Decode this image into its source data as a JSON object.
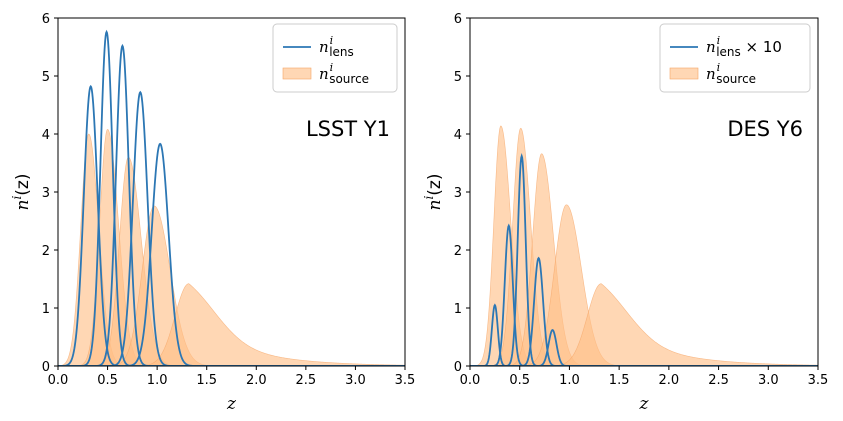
{
  "colors": {
    "lens": "#2c77b4",
    "source": "#ffbf86",
    "source_edge": "#f5a567"
  },
  "chart_data": [
    {
      "type": "line",
      "annotation": "LSST Y1",
      "xlabel": "z",
      "ylabel": "n^i(z)",
      "xlim": [
        0.0,
        3.5
      ],
      "ylim": [
        0,
        6
      ],
      "xticks": [
        "0.0",
        "0.5",
        "1.0",
        "1.5",
        "2.0",
        "2.5",
        "3.0",
        "3.5"
      ],
      "yticks": [
        "0",
        "1",
        "2",
        "3",
        "4",
        "5",
        "6"
      ],
      "legend": {
        "placement": "top-right",
        "lens_label": "n",
        "lens_sup": "i",
        "lens_sub": "lens",
        "lens_suffix": "",
        "source_label": "n",
        "source_sup": "i",
        "source_sub": "source"
      },
      "lens_series": [
        {
          "mean": 0.33,
          "sigma": 0.07,
          "peak": 4.82
        },
        {
          "mean": 0.49,
          "sigma": 0.062,
          "peak": 5.76
        },
        {
          "mean": 0.65,
          "sigma": 0.065,
          "peak": 5.52
        },
        {
          "mean": 0.83,
          "sigma": 0.074,
          "peak": 4.72
        },
        {
          "mean": 1.03,
          "sigma": 0.085,
          "peak": 3.83
        }
      ],
      "source_series": [
        {
          "mean": 0.31,
          "sigma_left": 0.08,
          "sigma_right": 0.1,
          "tail": 0.0,
          "peak": 4.0
        },
        {
          "mean": 0.5,
          "sigma_left": 0.08,
          "sigma_right": 0.11,
          "tail": 0.0,
          "peak": 4.08
        },
        {
          "mean": 0.71,
          "sigma_left": 0.09,
          "sigma_right": 0.13,
          "tail": 0.0,
          "peak": 3.6
        },
        {
          "mean": 0.97,
          "sigma_left": 0.12,
          "sigma_right": 0.16,
          "tail": 0.0,
          "peak": 2.76
        },
        {
          "mean": 1.32,
          "sigma_left": 0.14,
          "sigma_right": 0.3,
          "tail": 0.55,
          "peak": 1.42
        }
      ]
    },
    {
      "type": "line",
      "annotation": "DES Y6",
      "xlabel": "z",
      "ylabel": "n^i(z)",
      "xlim": [
        0.0,
        3.5
      ],
      "ylim": [
        0,
        6
      ],
      "xticks": [
        "0.0",
        "0.5",
        "1.0",
        "1.5",
        "2.0",
        "2.5",
        "3.0",
        "3.5"
      ],
      "yticks": [
        "0",
        "1",
        "2",
        "3",
        "4",
        "5",
        "6"
      ],
      "legend": {
        "placement": "top-right",
        "lens_label": "n",
        "lens_sup": "i",
        "lens_sub": "lens",
        "lens_suffix": " × 10",
        "source_label": "n",
        "source_sup": "i",
        "source_sub": "source"
      },
      "lens_series": [
        {
          "mean": 0.25,
          "sigma": 0.03,
          "peak": 1.05
        },
        {
          "mean": 0.39,
          "sigma": 0.04,
          "peak": 2.42
        },
        {
          "mean": 0.52,
          "sigma": 0.04,
          "peak": 3.62
        },
        {
          "mean": 0.69,
          "sigma": 0.045,
          "peak": 1.86
        },
        {
          "mean": 0.83,
          "sigma": 0.04,
          "peak": 0.62
        }
      ],
      "source_series": [
        {
          "mean": 0.31,
          "sigma_left": 0.07,
          "sigma_right": 0.1,
          "tail": 0.0,
          "peak": 4.14
        },
        {
          "mean": 0.51,
          "sigma_left": 0.08,
          "sigma_right": 0.1,
          "tail": 0.0,
          "peak": 4.1
        },
        {
          "mean": 0.72,
          "sigma_left": 0.09,
          "sigma_right": 0.12,
          "tail": 0.0,
          "peak": 3.66
        },
        {
          "mean": 0.97,
          "sigma_left": 0.12,
          "sigma_right": 0.15,
          "tail": 0.0,
          "peak": 2.78
        },
        {
          "mean": 1.32,
          "sigma_left": 0.14,
          "sigma_right": 0.3,
          "tail": 0.55,
          "peak": 1.42
        }
      ]
    }
  ]
}
